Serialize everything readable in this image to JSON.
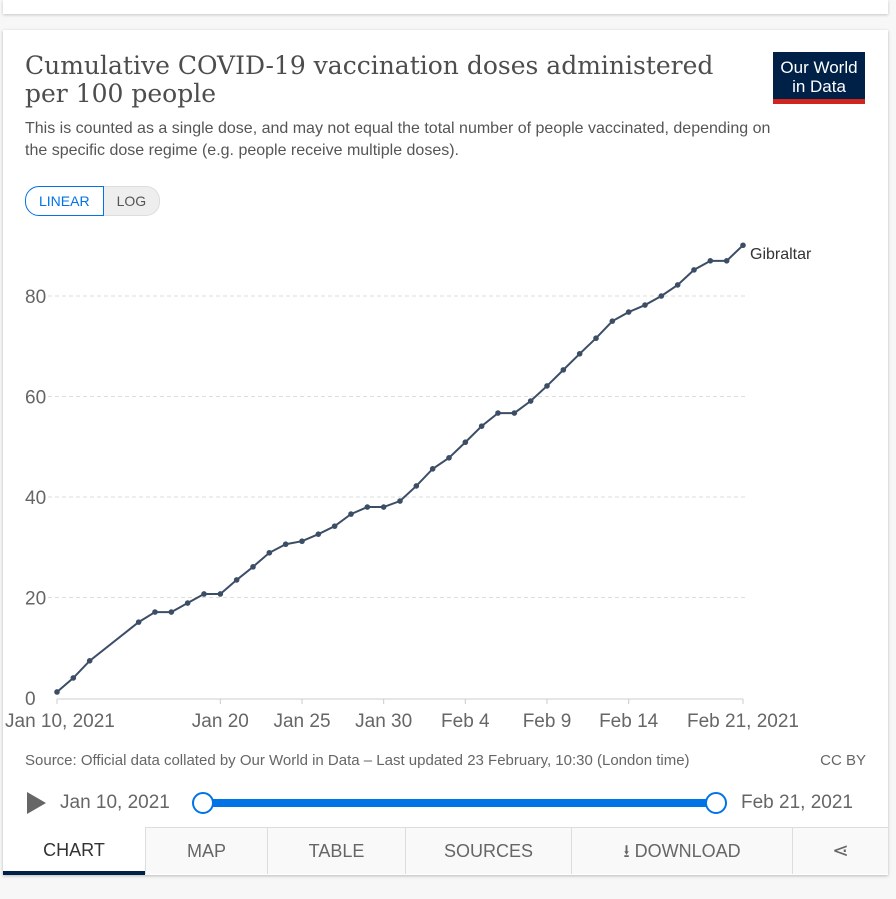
{
  "title": "Cumulative COVID-19 vaccination doses administered per 100 people",
  "subtitle": "This is counted as a single dose, and may not equal the total number of people vaccinated, depending on the specific dose regime (e.g. people receive multiple doses).",
  "logo": {
    "line1": "Our World",
    "line2": "in Data"
  },
  "scale": {
    "linear": "LINEAR",
    "log": "LOG",
    "selected": "LINEAR"
  },
  "source": "Source: Official data collated by Our World in Data – Last updated 23 February, 10:30 (London time)",
  "license": "CC BY",
  "timeline": {
    "start": "Jan 10, 2021",
    "end": "Feb 21, 2021",
    "range_start_fraction": 0,
    "range_end_fraction": 1
  },
  "tabs": [
    {
      "label": "CHART",
      "icon": ""
    },
    {
      "label": "MAP",
      "icon": ""
    },
    {
      "label": "TABLE",
      "icon": ""
    },
    {
      "label": "SOURCES",
      "icon": ""
    },
    {
      "label": "DOWNLOAD",
      "icon": "download-icon"
    },
    {
      "label": "",
      "icon": "share-icon"
    }
  ],
  "colors": {
    "line": "#3c4e66",
    "accent": "#0073e6",
    "brand": "#002147",
    "brand_red": "#ce261e"
  },
  "chart_data": {
    "type": "line",
    "ylim": [
      0,
      90
    ],
    "yticks": [
      0,
      20,
      40,
      60,
      80
    ],
    "xticks": [
      {
        "day": 0,
        "label": "Jan 10, 2021"
      },
      {
        "day": 10,
        "label": "Jan 20"
      },
      {
        "day": 15,
        "label": "Jan 25"
      },
      {
        "day": 20,
        "label": "Jan 30"
      },
      {
        "day": 25,
        "label": "Feb 4"
      },
      {
        "day": 30,
        "label": "Feb 9"
      },
      {
        "day": 35,
        "label": "Feb 14"
      },
      {
        "day": 42,
        "label": "Feb 21, 2021"
      }
    ],
    "grid": true,
    "series": [
      {
        "name": "Gibraltar",
        "x_days_since_jan10": [
          0,
          1,
          2,
          5,
          6,
          7,
          8,
          9,
          10,
          11,
          12,
          13,
          14,
          15,
          16,
          17,
          18,
          19,
          20,
          21,
          22,
          23,
          24,
          25,
          26,
          27,
          28,
          29,
          30,
          31,
          32,
          33,
          34,
          35,
          36,
          37,
          38,
          39,
          40,
          41,
          42
        ],
        "values": [
          1.2,
          4.0,
          7.4,
          15.1,
          17.1,
          17.1,
          18.9,
          20.7,
          20.7,
          23.5,
          26.1,
          28.9,
          30.6,
          31.2,
          32.6,
          34.2,
          36.6,
          38.0,
          38.0,
          39.2,
          42.2,
          45.6,
          47.8,
          50.9,
          54.1,
          56.7,
          56.7,
          59.1,
          62.1,
          65.3,
          68.5,
          71.6,
          75.0,
          76.8,
          78.2,
          80.0,
          82.2,
          85.2,
          87.0,
          87.0,
          90.1
        ]
      }
    ]
  }
}
